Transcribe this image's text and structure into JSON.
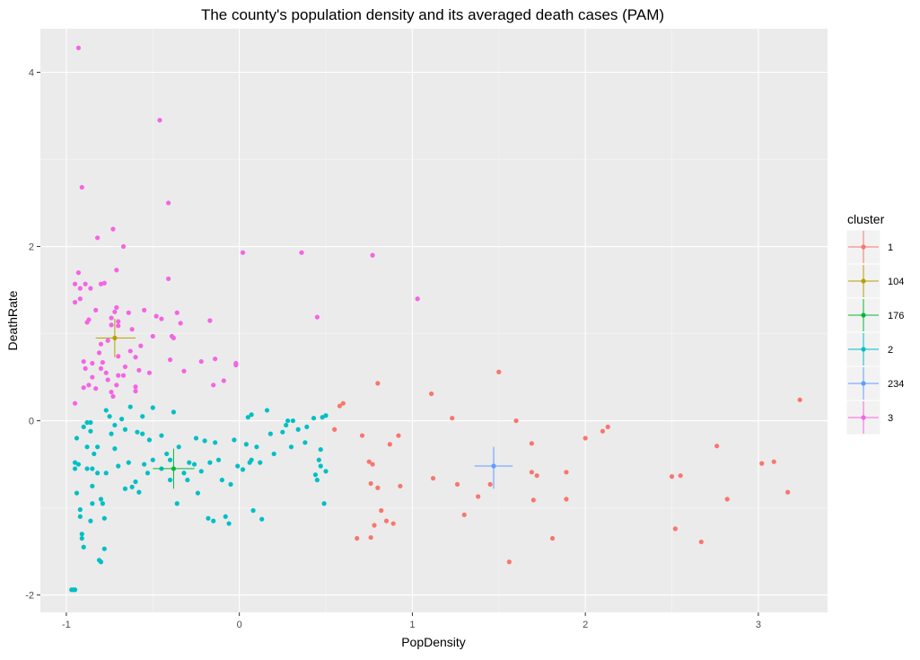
{
  "chart_data": {
    "type": "scatter",
    "title": "The county's population density and its averaged death cases (PAM)",
    "xlabel": "PopDensity",
    "ylabel": "DeathRate",
    "xlim": [
      -1.15,
      3.4
    ],
    "ylim": [
      -2.2,
      4.5
    ],
    "x_ticks": [
      -1,
      0,
      1,
      2,
      3
    ],
    "y_ticks": [
      -2,
      0,
      2,
      4
    ],
    "x_tick_labels": [
      "-1",
      "0",
      "1",
      "2",
      "3"
    ],
    "y_tick_labels": [
      "-2",
      "0",
      "2",
      "4"
    ],
    "grid": true,
    "panel_background": "#ebebeb",
    "legend": {
      "title": "cluster",
      "placement": "right",
      "entries": [
        {
          "label": "1",
          "color": "#F8766D"
        },
        {
          "label": "104",
          "color": "#B79F00"
        },
        {
          "label": "176",
          "color": "#00BA38"
        },
        {
          "label": "2",
          "color": "#00BFC4"
        },
        {
          "label": "234",
          "color": "#619CFF"
        },
        {
          "label": "3",
          "color": "#F564E3"
        }
      ]
    },
    "series": [
      {
        "name": "1",
        "color": "#F8766D",
        "points": [
          [
            0.55,
            -0.1
          ],
          [
            0.58,
            0.17
          ],
          [
            0.6,
            0.2
          ],
          [
            0.68,
            -1.35
          ],
          [
            0.71,
            -0.17
          ],
          [
            0.75,
            -0.47
          ],
          [
            0.76,
            -0.72
          ],
          [
            0.76,
            -1.34
          ],
          [
            0.77,
            -0.5
          ],
          [
            0.78,
            -1.2
          ],
          [
            0.8,
            0.43
          ],
          [
            0.8,
            -0.77
          ],
          [
            0.82,
            -1.03
          ],
          [
            0.85,
            -1.15
          ],
          [
            0.87,
            -0.27
          ],
          [
            0.89,
            -1.18
          ],
          [
            0.92,
            -0.17
          ],
          [
            0.93,
            -0.75
          ],
          [
            1.11,
            0.31
          ],
          [
            1.12,
            -0.66
          ],
          [
            1.23,
            0.03
          ],
          [
            1.26,
            -0.73
          ],
          [
            1.3,
            -1.08
          ],
          [
            1.38,
            -0.87
          ],
          [
            1.45,
            -0.73
          ],
          [
            1.5,
            0.56
          ],
          [
            1.56,
            -1.62
          ],
          [
            1.6,
            0.0
          ],
          [
            1.69,
            -0.26
          ],
          [
            1.69,
            -0.59
          ],
          [
            1.7,
            -0.91
          ],
          [
            1.72,
            -0.63
          ],
          [
            1.81,
            -1.35
          ],
          [
            1.89,
            -0.59
          ],
          [
            1.89,
            -0.9
          ],
          [
            2.0,
            -0.2
          ],
          [
            2.1,
            -0.12
          ],
          [
            2.13,
            -0.07
          ],
          [
            2.5,
            -0.64
          ],
          [
            2.52,
            -1.24
          ],
          [
            2.55,
            -0.63
          ],
          [
            2.67,
            -1.39
          ],
          [
            2.76,
            -0.29
          ],
          [
            2.82,
            -0.9
          ],
          [
            3.02,
            -0.49
          ],
          [
            3.09,
            -0.47
          ],
          [
            3.17,
            -0.82
          ],
          [
            3.24,
            0.24
          ]
        ]
      },
      {
        "name": "3",
        "color": "#F564E3",
        "points": [
          [
            -0.93,
            4.28
          ],
          [
            -0.91,
            2.68
          ],
          [
            -0.95,
            1.57
          ],
          [
            -0.92,
            1.52
          ],
          [
            -0.93,
            1.7
          ],
          [
            -0.95,
            1.36
          ],
          [
            -0.92,
            1.4
          ],
          [
            -0.89,
            1.57
          ],
          [
            -0.87,
            1.16
          ],
          [
            -0.88,
            1.13
          ],
          [
            -0.86,
            1.52
          ],
          [
            -0.83,
            1.27
          ],
          [
            -0.8,
            1.57
          ],
          [
            -0.78,
            1.58
          ],
          [
            -0.82,
            2.1
          ],
          [
            -0.73,
            2.2
          ],
          [
            -0.67,
            2.0
          ],
          [
            -0.71,
            1.73
          ],
          [
            -0.71,
            1.3
          ],
          [
            -0.72,
            1.25
          ],
          [
            -0.7,
            1.14
          ],
          [
            -0.7,
            1.09
          ],
          [
            -0.64,
            1.24
          ],
          [
            -0.62,
            1.05
          ],
          [
            -0.74,
            1.1
          ],
          [
            -0.74,
            1.18
          ],
          [
            -0.76,
            0.92
          ],
          [
            -0.8,
            0.88
          ],
          [
            -0.81,
            0.78
          ],
          [
            -0.79,
            0.67
          ],
          [
            -0.8,
            0.6
          ],
          [
            -0.85,
            0.66
          ],
          [
            -0.89,
            0.6
          ],
          [
            -0.9,
            0.68
          ],
          [
            -0.87,
            0.41
          ],
          [
            -0.83,
            0.37
          ],
          [
            -0.77,
            0.55
          ],
          [
            -0.76,
            0.47
          ],
          [
            -0.74,
            0.33
          ],
          [
            -0.73,
            0.28
          ],
          [
            -0.71,
            0.41
          ],
          [
            -0.7,
            0.74
          ],
          [
            -0.7,
            0.52
          ],
          [
            -0.66,
            0.62
          ],
          [
            -0.63,
            0.8
          ],
          [
            -0.6,
            0.39
          ],
          [
            -0.6,
            0.34
          ],
          [
            -0.6,
            0.73
          ],
          [
            -0.58,
            0.58
          ],
          [
            -0.57,
            0.86
          ],
          [
            -0.55,
            1.27
          ],
          [
            -0.52,
            0.55
          ],
          [
            -0.5,
            0.97
          ],
          [
            -0.48,
            1.2
          ],
          [
            -0.45,
            1.17
          ],
          [
            -0.46,
            3.45
          ],
          [
            -0.41,
            2.5
          ],
          [
            -0.41,
            1.63
          ],
          [
            -0.39,
            0.97
          ],
          [
            -0.38,
            0.95
          ],
          [
            -0.36,
            1.24
          ],
          [
            -0.34,
            1.12
          ],
          [
            -0.32,
            0.57
          ],
          [
            -0.4,
            0.7
          ],
          [
            -0.22,
            0.68
          ],
          [
            -0.17,
            1.15
          ],
          [
            -0.15,
            0.41
          ],
          [
            -0.14,
            0.71
          ],
          [
            -0.09,
            0.46
          ],
          [
            -0.02,
            0.64
          ],
          [
            -0.02,
            0.66
          ],
          [
            0.02,
            1.93
          ],
          [
            0.36,
            1.93
          ],
          [
            0.45,
            1.19
          ],
          [
            0.77,
            1.9
          ],
          [
            1.03,
            1.4
          ],
          [
            -0.95,
            0.2
          ],
          [
            -0.9,
            0.38
          ],
          [
            -0.85,
            0.5
          ],
          [
            -0.67,
            0.52
          ]
        ]
      },
      {
        "name": "2",
        "color": "#00BFC4",
        "points": [
          [
            -0.97,
            -1.94
          ],
          [
            -0.96,
            -1.94
          ],
          [
            -0.95,
            -1.94
          ],
          [
            -0.95,
            -0.55
          ],
          [
            -0.95,
            -0.48
          ],
          [
            -0.94,
            -0.83
          ],
          [
            -0.94,
            -0.2
          ],
          [
            -0.93,
            -0.5
          ],
          [
            -0.92,
            -1.02
          ],
          [
            -0.92,
            -1.1
          ],
          [
            -0.91,
            -1.3
          ],
          [
            -0.91,
            -1.35
          ],
          [
            -0.9,
            -1.45
          ],
          [
            -0.9,
            -0.07
          ],
          [
            -0.88,
            -0.02
          ],
          [
            -0.88,
            -0.3
          ],
          [
            -0.88,
            -0.55
          ],
          [
            -0.86,
            -0.02
          ],
          [
            -0.86,
            -0.12
          ],
          [
            -0.85,
            -0.55
          ],
          [
            -0.85,
            -0.75
          ],
          [
            -0.85,
            -0.95
          ],
          [
            -0.86,
            -1.15
          ],
          [
            -0.84,
            -0.38
          ],
          [
            -0.82,
            -0.3
          ],
          [
            -0.82,
            -0.6
          ],
          [
            -0.81,
            -1.6
          ],
          [
            -0.8,
            -1.62
          ],
          [
            -0.8,
            -0.9
          ],
          [
            -0.79,
            -0.95
          ],
          [
            -0.78,
            -1.47
          ],
          [
            -0.78,
            -1.12
          ],
          [
            -0.77,
            0.12
          ],
          [
            -0.77,
            -0.6
          ],
          [
            -0.75,
            0.05
          ],
          [
            -0.74,
            -0.15
          ],
          [
            -0.72,
            -0.05
          ],
          [
            -0.72,
            -0.32
          ],
          [
            -0.7,
            -0.52
          ],
          [
            -0.68,
            0.02
          ],
          [
            -0.66,
            -0.1
          ],
          [
            -0.66,
            -0.78
          ],
          [
            -0.64,
            -0.48
          ],
          [
            -0.63,
            0.16
          ],
          [
            -0.62,
            -0.76
          ],
          [
            -0.6,
            -0.7
          ],
          [
            -0.59,
            -0.13
          ],
          [
            -0.58,
            -0.82
          ],
          [
            -0.56,
            0.05
          ],
          [
            -0.56,
            -0.15
          ],
          [
            -0.55,
            -0.5
          ],
          [
            -0.53,
            -0.6
          ],
          [
            -0.52,
            -0.22
          ],
          [
            -0.5,
            0.15
          ],
          [
            -0.5,
            -0.45
          ],
          [
            -0.45,
            -0.55
          ],
          [
            -0.45,
            -0.17
          ],
          [
            -0.42,
            -0.38
          ],
          [
            -0.4,
            -0.45
          ],
          [
            -0.4,
            -0.68
          ],
          [
            -0.38,
            0.1
          ],
          [
            -0.36,
            -0.95
          ],
          [
            -0.35,
            -0.3
          ],
          [
            -0.32,
            -0.6
          ],
          [
            -0.3,
            -0.68
          ],
          [
            -0.29,
            -0.48
          ],
          [
            -0.26,
            -0.5
          ],
          [
            -0.25,
            -0.2
          ],
          [
            -0.24,
            -0.83
          ],
          [
            -0.22,
            -0.58
          ],
          [
            -0.2,
            -0.23
          ],
          [
            -0.18,
            -1.12
          ],
          [
            -0.17,
            -0.48
          ],
          [
            -0.15,
            -1.15
          ],
          [
            -0.14,
            -0.25
          ],
          [
            -0.12,
            -0.45
          ],
          [
            -0.1,
            -0.68
          ],
          [
            -0.08,
            -1.1
          ],
          [
            -0.06,
            -1.18
          ],
          [
            -0.05,
            -0.73
          ],
          [
            -0.03,
            -0.22
          ],
          [
            -0.01,
            -0.52
          ],
          [
            0.02,
            -0.56
          ],
          [
            0.04,
            -0.27
          ],
          [
            0.05,
            0.04
          ],
          [
            0.06,
            -0.48
          ],
          [
            0.07,
            0.07
          ],
          [
            0.07,
            -0.45
          ],
          [
            0.08,
            -1.03
          ],
          [
            0.1,
            -0.3
          ],
          [
            0.12,
            -0.48
          ],
          [
            0.13,
            -1.13
          ],
          [
            0.16,
            0.12
          ],
          [
            0.18,
            -0.15
          ],
          [
            0.2,
            -0.38
          ],
          [
            0.25,
            -0.13
          ],
          [
            0.27,
            -0.05
          ],
          [
            0.28,
            0.0
          ],
          [
            0.3,
            -0.3
          ],
          [
            0.31,
            0.0
          ],
          [
            0.34,
            -0.1
          ],
          [
            0.38,
            -0.25
          ],
          [
            0.39,
            -0.07
          ],
          [
            0.43,
            0.03
          ],
          [
            0.44,
            -0.62
          ],
          [
            0.45,
            -0.68
          ],
          [
            0.47,
            -0.52
          ],
          [
            0.47,
            -0.33
          ],
          [
            0.48,
            0.04
          ],
          [
            0.49,
            -0.95
          ],
          [
            0.5,
            -0.58
          ],
          [
            0.5,
            0.06
          ],
          [
            0.46,
            -0.45
          ]
        ]
      }
    ],
    "centers": [
      {
        "name": "104",
        "color": "#B79F00",
        "x": -0.72,
        "y": 0.95,
        "x_range": [
          -0.83,
          -0.6
        ],
        "y_range": [
          0.73,
          1.17
        ]
      },
      {
        "name": "176",
        "color": "#00BA38",
        "x": -0.38,
        "y": -0.55,
        "x_range": [
          -0.5,
          -0.26
        ],
        "y_range": [
          -0.78,
          -0.32
        ]
      },
      {
        "name": "234",
        "color": "#619CFF",
        "x": 1.47,
        "y": -0.52,
        "x_range": [
          1.36,
          1.58
        ],
        "y_range": [
          -0.78,
          -0.3
        ]
      }
    ]
  }
}
